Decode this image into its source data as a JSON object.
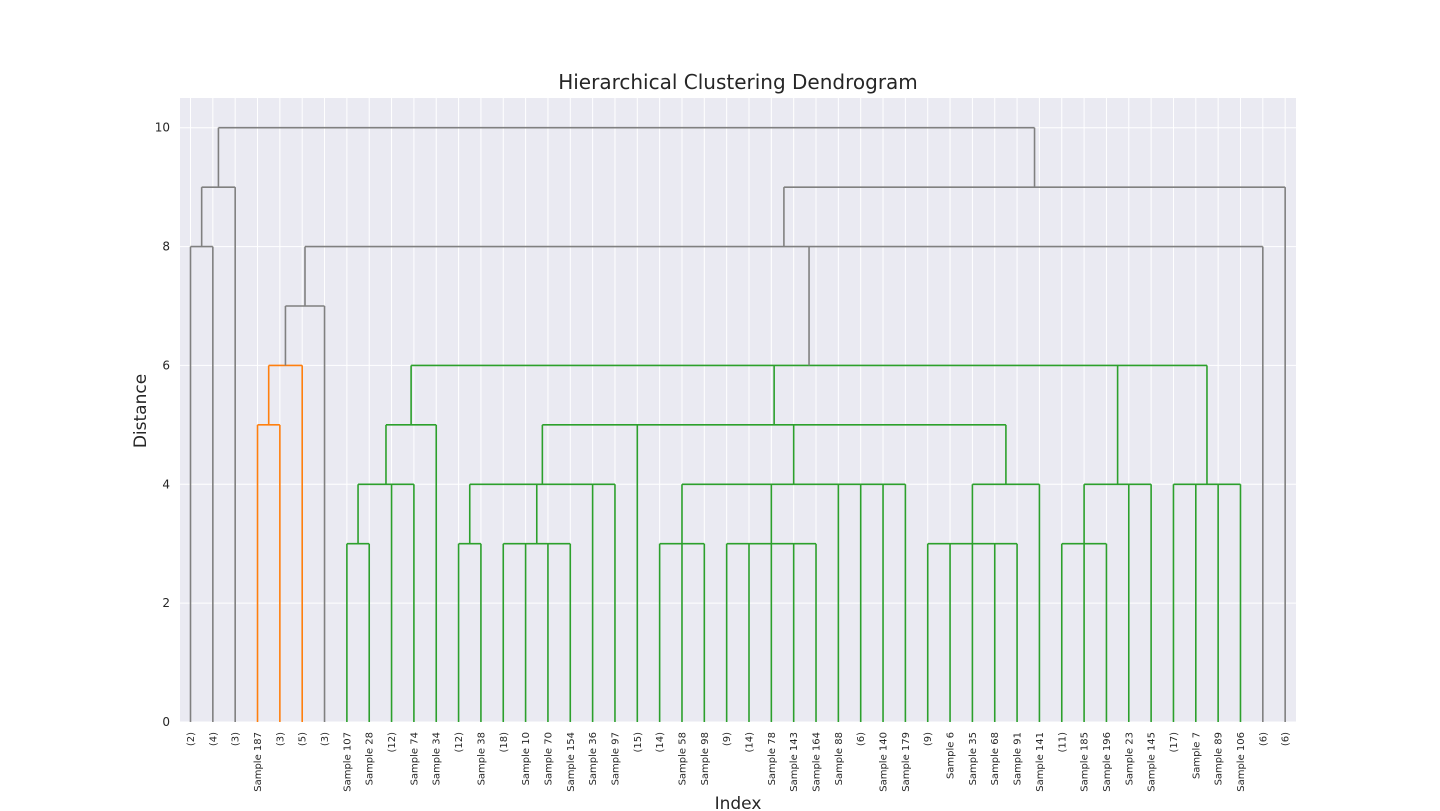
{
  "chart_data": {
    "type": "dendrogram",
    "title": "Hierarchical Clustering Dendrogram",
    "xlabel": "Index",
    "ylabel": "Distance",
    "ylim": [
      0,
      10.5
    ],
    "yticks": [
      0,
      2,
      4,
      6,
      8,
      10
    ],
    "grid": true,
    "colors": {
      "gray": "#808080",
      "orange": "#ff7f0e",
      "green": "#2ca02c",
      "background": "#eaeaf2"
    },
    "leaves": [
      "(2)",
      "(4)",
      "(3)",
      "Sample 187",
      "(3)",
      "(5)",
      "(3)",
      "Sample 107",
      "Sample 28",
      "(12)",
      "Sample 74",
      "Sample 34",
      "(12)",
      "Sample 38",
      "(18)",
      "Sample 10",
      "Sample 70",
      "Sample 154",
      "Sample 36",
      "Sample 97",
      "(15)",
      "(14)",
      "Sample 58",
      "Sample 98",
      "(9)",
      "(14)",
      "Sample 78",
      "Sample 143",
      "Sample 164",
      "Sample 88",
      "(6)",
      "Sample 140",
      "Sample 179",
      "(9)",
      "Sample 6",
      "Sample 35",
      "Sample 68",
      "Sample 91",
      "Sample 141",
      "(11)",
      "Sample 185",
      "Sample 196",
      "Sample 23",
      "Sample 145",
      "(17)",
      "Sample 7",
      "Sample 89",
      "Sample 106",
      "(6)",
      "(6)"
    ],
    "links": [
      {
        "h": 8,
        "c": [
          0,
          1
        ],
        "color": "gray"
      },
      {
        "h": 9,
        "c": [
          "L0",
          2
        ],
        "color": "gray"
      },
      {
        "h": 5,
        "c": [
          3,
          4
        ],
        "color": "orange"
      },
      {
        "h": 6,
        "c": [
          "L2",
          5
        ],
        "color": "orange"
      },
      {
        "h": 7,
        "c": [
          "L3",
          6
        ],
        "color": "gray"
      },
      {
        "h": 3,
        "c": [
          7,
          8
        ],
        "color": "green"
      },
      {
        "h": 4,
        "c": [
          "L5",
          9,
          10
        ],
        "color": "green"
      },
      {
        "h": 5,
        "c": [
          "L6",
          11
        ],
        "color": "green"
      },
      {
        "h": 3,
        "c": [
          12,
          13
        ],
        "color": "green"
      },
      {
        "h": 3,
        "c": [
          14,
          15,
          16,
          17
        ],
        "color": "green"
      },
      {
        "h": 4,
        "c": [
          "L8",
          "L9",
          18,
          19
        ],
        "color": "green"
      },
      {
        "h": 3,
        "c": [
          21,
          22,
          23
        ],
        "color": "green"
      },
      {
        "h": 3,
        "c": [
          24,
          25,
          26,
          27,
          28
        ],
        "color": "green"
      },
      {
        "h": 4,
        "c": [
          "L11",
          "L12",
          29,
          30,
          31,
          32
        ],
        "color": "green"
      },
      {
        "h": 3,
        "c": [
          33,
          34,
          35,
          36,
          37
        ],
        "color": "green"
      },
      {
        "h": 4,
        "c": [
          "L14",
          38
        ],
        "color": "green"
      },
      {
        "h": 5,
        "c": [
          "L10",
          20,
          "L13",
          "L15"
        ],
        "color": "green"
      },
      {
        "h": 3,
        "c": [
          39,
          40,
          41
        ],
        "color": "green"
      },
      {
        "h": 4,
        "c": [
          "L17",
          42,
          43
        ],
        "color": "green"
      },
      {
        "h": 4,
        "c": [
          44,
          45,
          46,
          47
        ],
        "color": "green"
      },
      {
        "h": 6,
        "c": [
          "L7",
          "L16",
          "L18",
          "L19"
        ],
        "color": "green"
      },
      {
        "h": 8,
        "c": [
          "L4",
          "L20",
          48
        ],
        "color": "gray"
      },
      {
        "h": 9,
        "c": [
          "L21",
          49
        ],
        "color": "gray"
      },
      {
        "h": 10,
        "c": [
          "L1",
          "L22"
        ],
        "color": "gray"
      }
    ]
  }
}
